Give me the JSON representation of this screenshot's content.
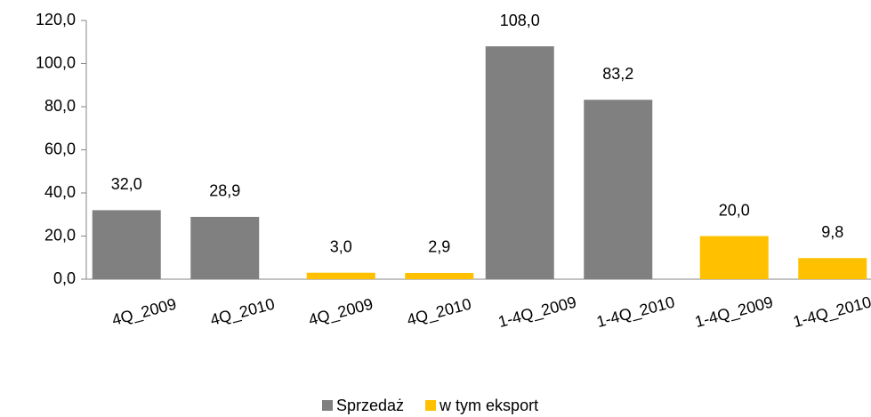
{
  "chart_data": {
    "type": "bar",
    "categories": [
      "4Q_2009",
      "4Q_2010",
      "4Q_2009",
      "4Q_2010",
      "1-4Q_2009",
      "1-4Q_2010",
      "1-4Q_2009",
      "1-4Q_2010"
    ],
    "series": [
      {
        "name": "Sprzedaż",
        "color": "#808080",
        "values": [
          32.0,
          28.9,
          null,
          null,
          108.0,
          83.2,
          null,
          null
        ],
        "value_labels": [
          "32,0",
          "28,9",
          null,
          null,
          "108,0",
          "83,2",
          null,
          null
        ]
      },
      {
        "name": "w tym eksport",
        "color": "#ffc000",
        "values": [
          null,
          null,
          3.0,
          2.9,
          null,
          null,
          20.0,
          9.8
        ],
        "value_labels": [
          null,
          null,
          "3,0",
          "2,9",
          null,
          null,
          "20,0",
          "9,8"
        ]
      }
    ],
    "ylim": [
      0,
      120
    ],
    "yticks": [
      {
        "value": 0,
        "label": "0,0"
      },
      {
        "value": 20,
        "label": "20,0"
      },
      {
        "value": 40,
        "label": "40,0"
      },
      {
        "value": 60,
        "label": "60,0"
      },
      {
        "value": 80,
        "label": "80,0"
      },
      {
        "value": 100,
        "label": "100,0"
      },
      {
        "value": 120,
        "label": "120,0"
      }
    ],
    "grid": false,
    "legend": "bottom"
  }
}
